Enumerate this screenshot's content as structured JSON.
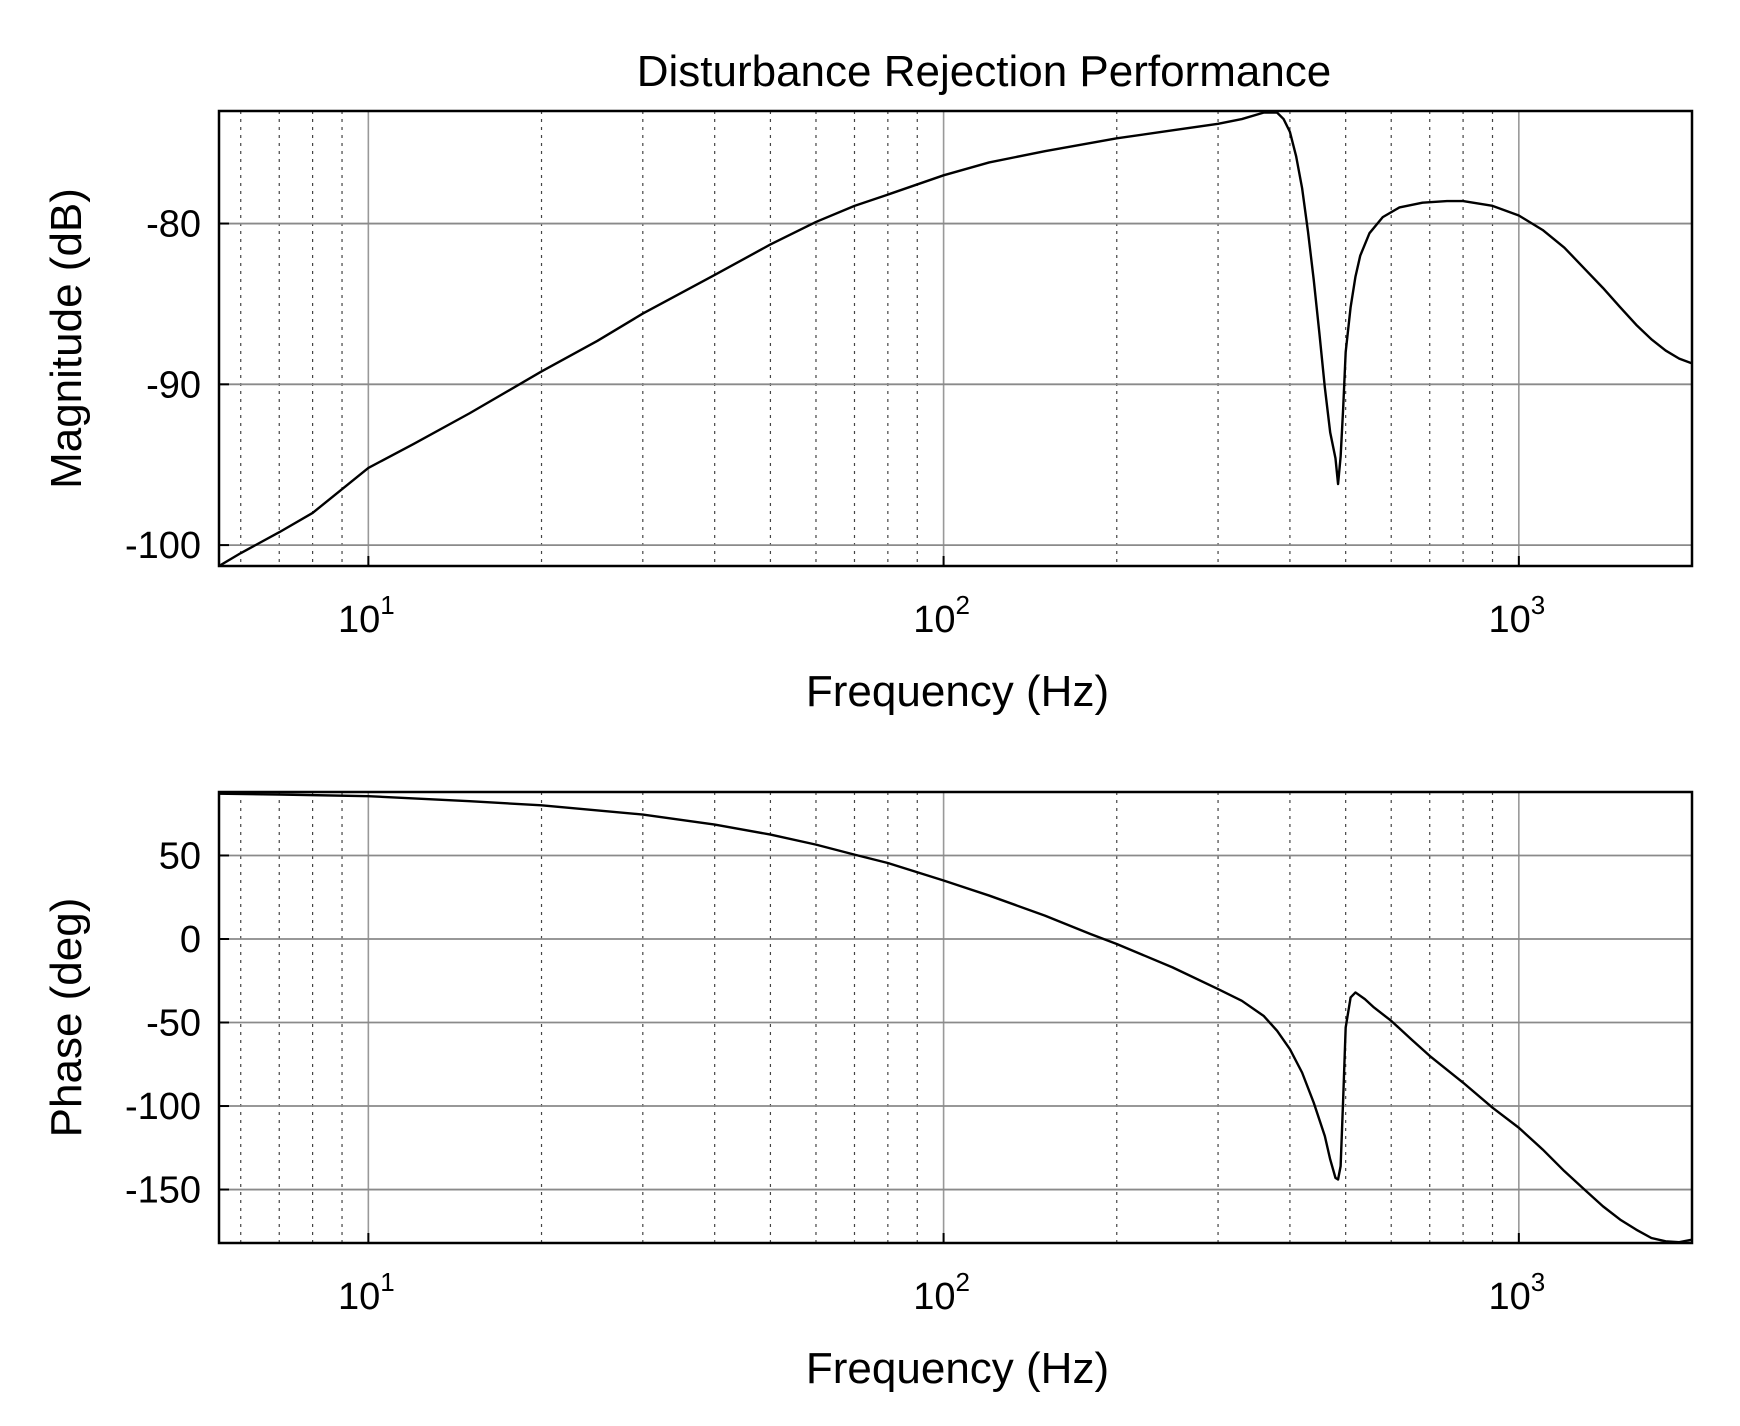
{
  "chart_data": [
    {
      "type": "line",
      "title": "Disturbance Rejection Performance",
      "xlabel": "Frequency (Hz)",
      "ylabel": "Magnitude (dB)",
      "xscale": "log",
      "xlim": [
        5.5,
        2000
      ],
      "ylim": [
        -101.3,
        -73
      ],
      "xticks": [
        {
          "value": 10,
          "base": "10",
          "exp": "1"
        },
        {
          "value": 100,
          "base": "10",
          "exp": "2"
        },
        {
          "value": 1000,
          "base": "10",
          "exp": "3"
        }
      ],
      "yticks": [
        {
          "value": -80,
          "label": "-80"
        },
        {
          "value": -90,
          "label": "-90"
        },
        {
          "value": -100,
          "label": "-100"
        }
      ],
      "grid": true,
      "series": [
        {
          "x": [
            5.5,
            6,
            7,
            8,
            10,
            12,
            15,
            20,
            25,
            30,
            40,
            50,
            60,
            70,
            80,
            100,
            120,
            150,
            200,
            250,
            300,
            330,
            360,
            380,
            390,
            400,
            410,
            420,
            430,
            440,
            450,
            460,
            470,
            480,
            485,
            490,
            495,
            500,
            510,
            520,
            530,
            550,
            580,
            620,
            680,
            750,
            800,
            900,
            1000,
            1100,
            1200,
            1300,
            1400,
            1500,
            1600,
            1700,
            1800,
            1900,
            2000
          ],
          "y": [
            -101.3,
            -100.5,
            -99.2,
            -98.0,
            -95.2,
            -93.7,
            -91.8,
            -89.2,
            -87.3,
            -85.6,
            -83.2,
            -81.3,
            -79.9,
            -78.9,
            -78.2,
            -77.0,
            -76.2,
            -75.5,
            -74.7,
            -74.2,
            -73.8,
            -73.5,
            -73.1,
            -73.1,
            -73.5,
            -74.3,
            -75.8,
            -77.8,
            -80.5,
            -83.5,
            -86.8,
            -90.2,
            -93.0,
            -94.6,
            -96.2,
            -94.5,
            -91.5,
            -88.0,
            -85.2,
            -83.3,
            -82.0,
            -80.6,
            -79.6,
            -79.0,
            -78.7,
            -78.6,
            -78.6,
            -78.9,
            -79.5,
            -80.4,
            -81.5,
            -82.8,
            -84.0,
            -85.2,
            -86.3,
            -87.2,
            -87.9,
            -88.4,
            -88.7
          ]
        }
      ]
    },
    {
      "type": "line",
      "xlabel": "Frequency (Hz)",
      "ylabel": "Phase (deg)",
      "xscale": "log",
      "xlim": [
        5.5,
        2000
      ],
      "ylim": [
        -182,
        88
      ],
      "xticks": [
        {
          "value": 10,
          "base": "10",
          "exp": "1"
        },
        {
          "value": 100,
          "base": "10",
          "exp": "2"
        },
        {
          "value": 1000,
          "base": "10",
          "exp": "3"
        }
      ],
      "yticks": [
        {
          "value": 50,
          "label": "50"
        },
        {
          "value": 0,
          "label": "0"
        },
        {
          "value": -50,
          "label": "-50"
        },
        {
          "value": -100,
          "label": "-100"
        },
        {
          "value": -150,
          "label": "-150"
        }
      ],
      "grid": true,
      "series": [
        {
          "x": [
            5.5,
            7,
            10,
            15,
            20,
            30,
            40,
            50,
            60,
            70,
            80,
            100,
            120,
            150,
            180,
            200,
            250,
            300,
            330,
            360,
            380,
            400,
            420,
            440,
            460,
            470,
            480,
            485,
            490,
            495,
            500,
            510,
            520,
            540,
            560,
            600,
            650,
            700,
            800,
            900,
            1000,
            1100,
            1200,
            1300,
            1400,
            1500,
            1600,
            1700,
            1800,
            1900,
            2000
          ],
          "y": [
            87,
            86.5,
            85.5,
            82.5,
            80,
            74.5,
            68.5,
            62.5,
            56.5,
            50.5,
            45.5,
            35,
            26,
            14,
            3,
            -3,
            -17,
            -30,
            -37,
            -46,
            -55,
            -66,
            -80,
            -98,
            -118,
            -132,
            -143,
            -144,
            -136,
            -96,
            -53,
            -35,
            -32,
            -36,
            -41,
            -49,
            -60,
            -70,
            -86,
            -101,
            -113,
            -126,
            -139,
            -150,
            -160,
            -168,
            -174,
            -179,
            -181,
            -181.5,
            -180
          ]
        }
      ]
    }
  ]
}
